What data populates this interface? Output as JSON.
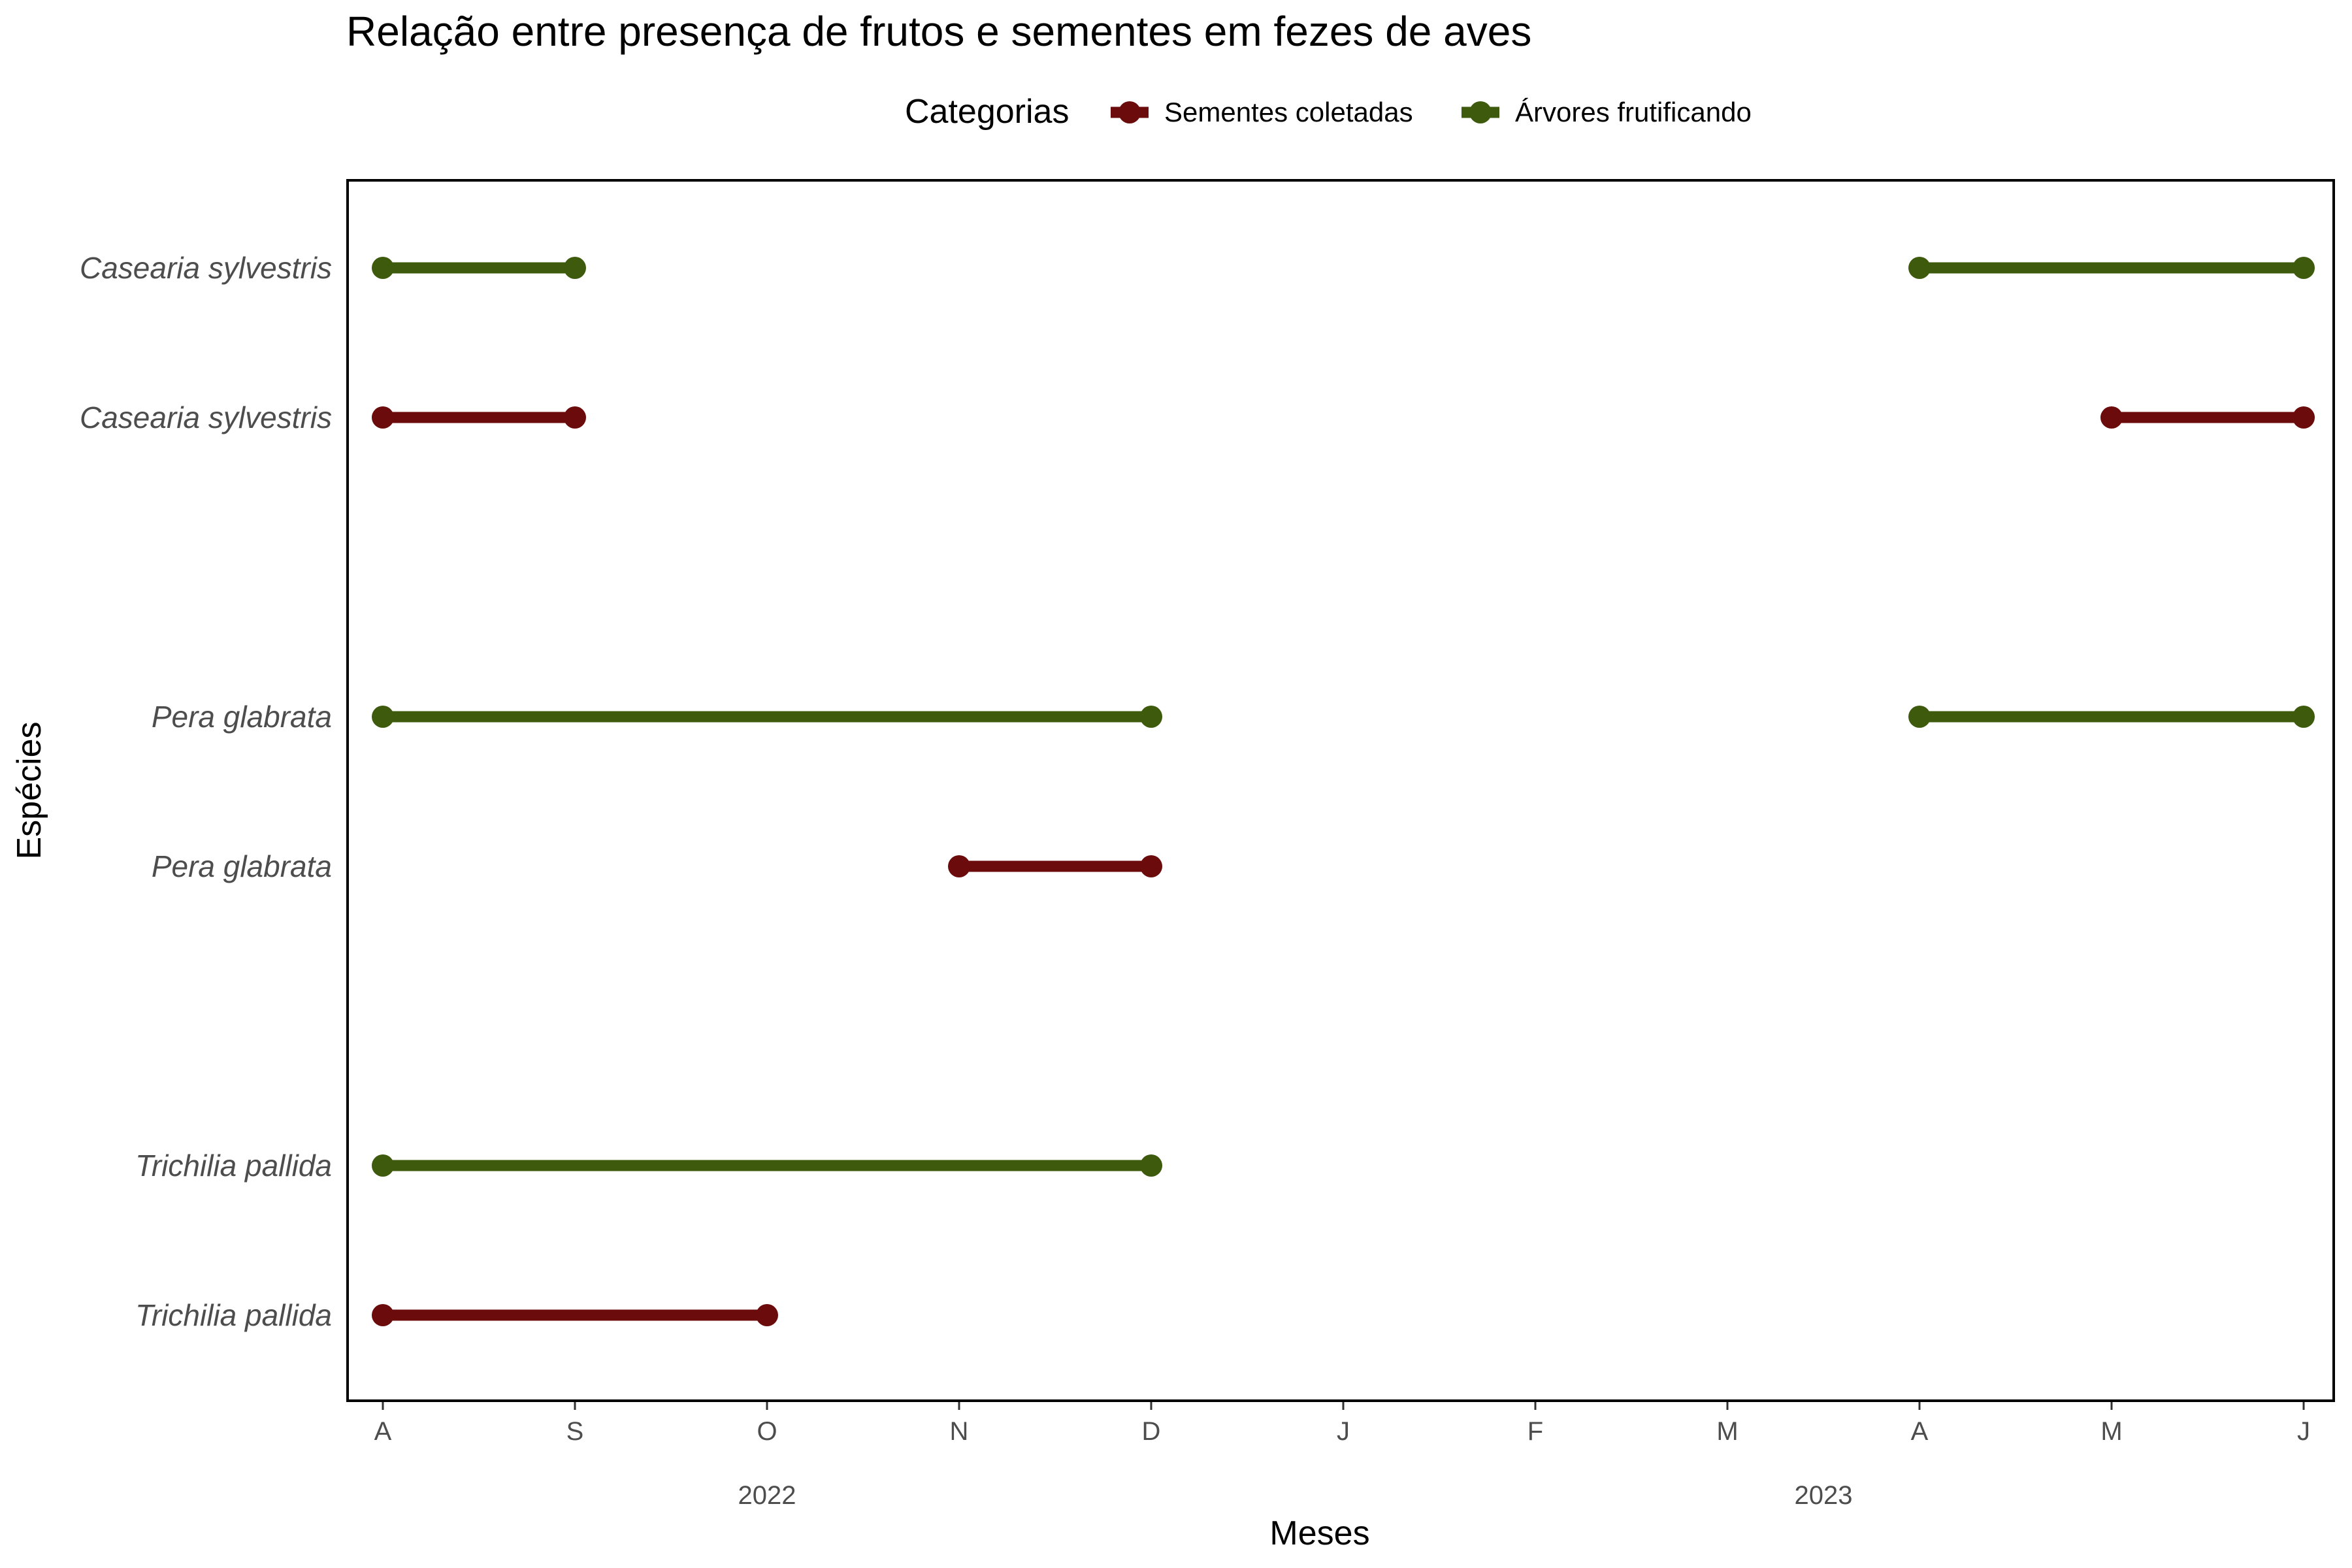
{
  "chart_data": {
    "type": "dumbbell",
    "title": "Relação entre presença de frutos e sementes em fezes de aves",
    "xlabel": "Meses",
    "ylabel": "Espécies",
    "legend": {
      "title": "Categorias",
      "placement": "top",
      "entries": [
        {
          "key": "seeds",
          "label": "Sementes coletadas",
          "color": "#6b0b0b"
        },
        {
          "key": "fruit",
          "label": "Árvores frutificando",
          "color": "#3d5a0d"
        }
      ]
    },
    "x_months": [
      "A",
      "S",
      "O",
      "N",
      "D",
      "J",
      "F",
      "M",
      "A",
      "M",
      "J"
    ],
    "x_years": [
      {
        "label": "2022",
        "from": "2022-08",
        "to": "2022-12"
      },
      {
        "label": "2023",
        "from": "2023-01",
        "to": "2023-06"
      }
    ],
    "rows": [
      {
        "label": "Casearia sylvestris",
        "category": "fruit",
        "segments": [
          [
            "2022-08",
            "2022-09"
          ],
          [
            "2023-04",
            "2023-06"
          ]
        ]
      },
      {
        "label": "Casearia sylvestris",
        "category": "seeds",
        "segments": [
          [
            "2022-08",
            "2022-09"
          ],
          [
            "2023-05",
            "2023-06"
          ]
        ]
      },
      {
        "label": "Pera glabrata",
        "category": "fruit",
        "segments": [
          [
            "2022-08",
            "2022-12"
          ],
          [
            "2023-04",
            "2023-06"
          ]
        ]
      },
      {
        "label": "Pera glabrata",
        "category": "seeds",
        "segments": [
          [
            "2022-11",
            "2022-12"
          ]
        ]
      },
      {
        "label": "Trichilia pallida",
        "category": "fruit",
        "segments": [
          [
            "2022-08",
            "2022-12"
          ]
        ]
      },
      {
        "label": "Trichilia pallida",
        "category": "seeds",
        "segments": [
          [
            "2022-08",
            "2022-10"
          ]
        ]
      }
    ],
    "grid": false,
    "panel_border": true
  }
}
